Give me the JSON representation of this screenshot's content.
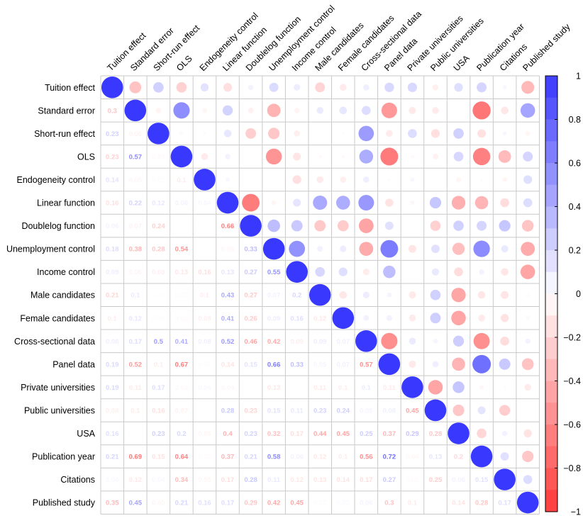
{
  "chart_data": {
    "type": "heatmap",
    "variables": [
      "Tuition effect",
      "Standard error",
      "Short-run effect",
      "OLS",
      "Endogeneity control",
      "Linear function",
      "Doublelog function",
      "Unemployment control",
      "Income control",
      "Male candidates",
      "Female candidates",
      "Cross-sectional data",
      "Panel data",
      "Private universities",
      "Public universities",
      "USA",
      "Publication year",
      "Citations",
      "Published study"
    ],
    "matrix": [
      [
        1,
        -0.3,
        0.23,
        -0.23,
        0.14,
        -0.16,
        0.06,
        0.18,
        0.09,
        -0.21,
        -0.1,
        0.08,
        0.19,
        0.19,
        -0.08,
        0.16,
        0.21,
        0.04,
        -0.35
      ],
      [
        -0.3,
        1,
        -0.06,
        0.57,
        -0.05,
        0.22,
        -0.07,
        -0.38,
        -0.06,
        0.1,
        0.12,
        0.17,
        -0.52,
        -0.11,
        -0.1,
        -0.01,
        -0.69,
        -0.12,
        0.45
      ],
      [
        0.23,
        -0.06,
        1,
        -0.03,
        -0.02,
        0.12,
        -0.24,
        -0.28,
        -0.08,
        0.01,
        -0.02,
        0.5,
        -0.1,
        0.17,
        -0.16,
        0.23,
        -0.15,
        0.04,
        -0.05
      ],
      [
        -0.23,
        0.57,
        -0.03,
        1,
        -0.1,
        0.06,
        0.0,
        -0.54,
        -0.13,
        -0.03,
        -0.03,
        0.41,
        -0.67,
        -0.03,
        -0.07,
        0.2,
        -0.64,
        -0.34,
        0.21
      ],
      [
        0.14,
        -0.05,
        -0.02,
        -0.1,
        1,
        0.04,
        -0.01,
        0.0,
        -0.16,
        -0.1,
        -0.08,
        0.08,
        -0.02,
        0.04,
        0.0,
        -0.05,
        -0.02,
        -0.05,
        0.16
      ],
      [
        -0.16,
        0.22,
        0.12,
        0.06,
        0.04,
        1,
        -0.66,
        -0.05,
        0.13,
        0.43,
        0.41,
        0.52,
        -0.14,
        -0.04,
        0.28,
        -0.4,
        -0.37,
        -0.17,
        0.17
      ],
      [
        0.06,
        -0.07,
        -0.24,
        0.0,
        -0.01,
        -0.66,
        1,
        0.33,
        0.27,
        -0.27,
        -0.26,
        -0.46,
        0.15,
        -0.01,
        -0.23,
        0.23,
        0.21,
        0.28,
        -0.29
      ],
      [
        0.18,
        -0.38,
        -0.28,
        -0.54,
        0.0,
        -0.05,
        0.33,
        1,
        0.55,
        0.07,
        0.09,
        -0.42,
        0.66,
        -0.13,
        0.15,
        -0.32,
        0.58,
        0.11,
        -0.42
      ],
      [
        0.09,
        -0.06,
        -0.08,
        -0.13,
        -0.16,
        0.13,
        0.27,
        0.55,
        1,
        0.2,
        0.16,
        -0.09,
        0.33,
        0.0,
        0.11,
        -0.17,
        0.06,
        -0.12,
        -0.45
      ],
      [
        -0.21,
        0.1,
        0.01,
        -0.03,
        -0.1,
        0.43,
        -0.27,
        0.07,
        0.2,
        1,
        -0.12,
        0.09,
        0.05,
        -0.11,
        0.23,
        -0.44,
        -0.12,
        -0.13,
        0.02
      ],
      [
        -0.1,
        0.12,
        -0.02,
        -0.03,
        -0.08,
        0.41,
        -0.26,
        0.09,
        0.16,
        -0.12,
        1,
        0.07,
        0.07,
        -0.1,
        0.24,
        -0.45,
        -0.1,
        -0.14,
        0.03
      ],
      [
        0.08,
        0.17,
        0.5,
        0.41,
        0.08,
        0.52,
        -0.46,
        -0.42,
        -0.09,
        0.09,
        0.07,
        1,
        -0.57,
        0.1,
        0.05,
        0.25,
        -0.56,
        -0.17,
        0.06
      ],
      [
        0.19,
        -0.52,
        -0.1,
        -0.67,
        -0.02,
        -0.14,
        0.15,
        0.66,
        0.33,
        0.05,
        0.07,
        -0.57,
        1,
        -0.11,
        0.08,
        -0.37,
        0.72,
        0.27,
        -0.3
      ],
      [
        0.19,
        -0.11,
        0.17,
        -0.03,
        0.04,
        -0.04,
        -0.01,
        -0.13,
        0.0,
        -0.11,
        -0.1,
        0.1,
        -0.11,
        1,
        -0.45,
        0.29,
        -0.04,
        -0.02,
        -0.1
      ],
      [
        -0.08,
        -0.1,
        -0.16,
        -0.07,
        0.0,
        0.28,
        -0.23,
        0.15,
        0.11,
        0.23,
        0.24,
        0.05,
        0.08,
        -0.45,
        1,
        -0.28,
        0.13,
        -0.25,
        0.0
      ],
      [
        0.16,
        -0.01,
        0.23,
        0.2,
        -0.05,
        -0.4,
        0.23,
        -0.32,
        -0.17,
        -0.44,
        -0.45,
        0.25,
        -0.37,
        0.29,
        -0.28,
        1,
        -0.2,
        0.06,
        -0.14
      ],
      [
        0.21,
        -0.69,
        -0.15,
        -0.64,
        -0.02,
        -0.37,
        0.21,
        0.58,
        0.06,
        -0.12,
        -0.1,
        -0.56,
        0.72,
        -0.04,
        0.13,
        -0.2,
        1,
        0.15,
        -0.28
      ],
      [
        0.04,
        -0.12,
        0.04,
        -0.34,
        -0.05,
        -0.17,
        0.28,
        0.11,
        -0.12,
        -0.13,
        -0.14,
        -0.17,
        0.27,
        -0.02,
        -0.25,
        0.06,
        0.15,
        1,
        0.17
      ],
      [
        -0.35,
        0.45,
        -0.05,
        0.21,
        0.16,
        0.17,
        -0.29,
        -0.42,
        -0.45,
        0.02,
        0.03,
        0.06,
        -0.3,
        -0.1,
        0.0,
        -0.14,
        -0.28,
        0.17,
        1
      ]
    ],
    "lower_triangle": "numbers",
    "upper_triangle": "circles",
    "color_scale": {
      "min": -1,
      "max": 1,
      "negative": "#ff0000",
      "zero": "#ffffff",
      "positive": "#0000ff"
    },
    "colorbar_ticks": [
      "1",
      "0.8",
      "0.6",
      "0.4",
      "0.2",
      "0",
      "−0.2",
      "−0.4",
      "−0.6",
      "−0.8",
      "−1"
    ],
    "grid": true
  }
}
